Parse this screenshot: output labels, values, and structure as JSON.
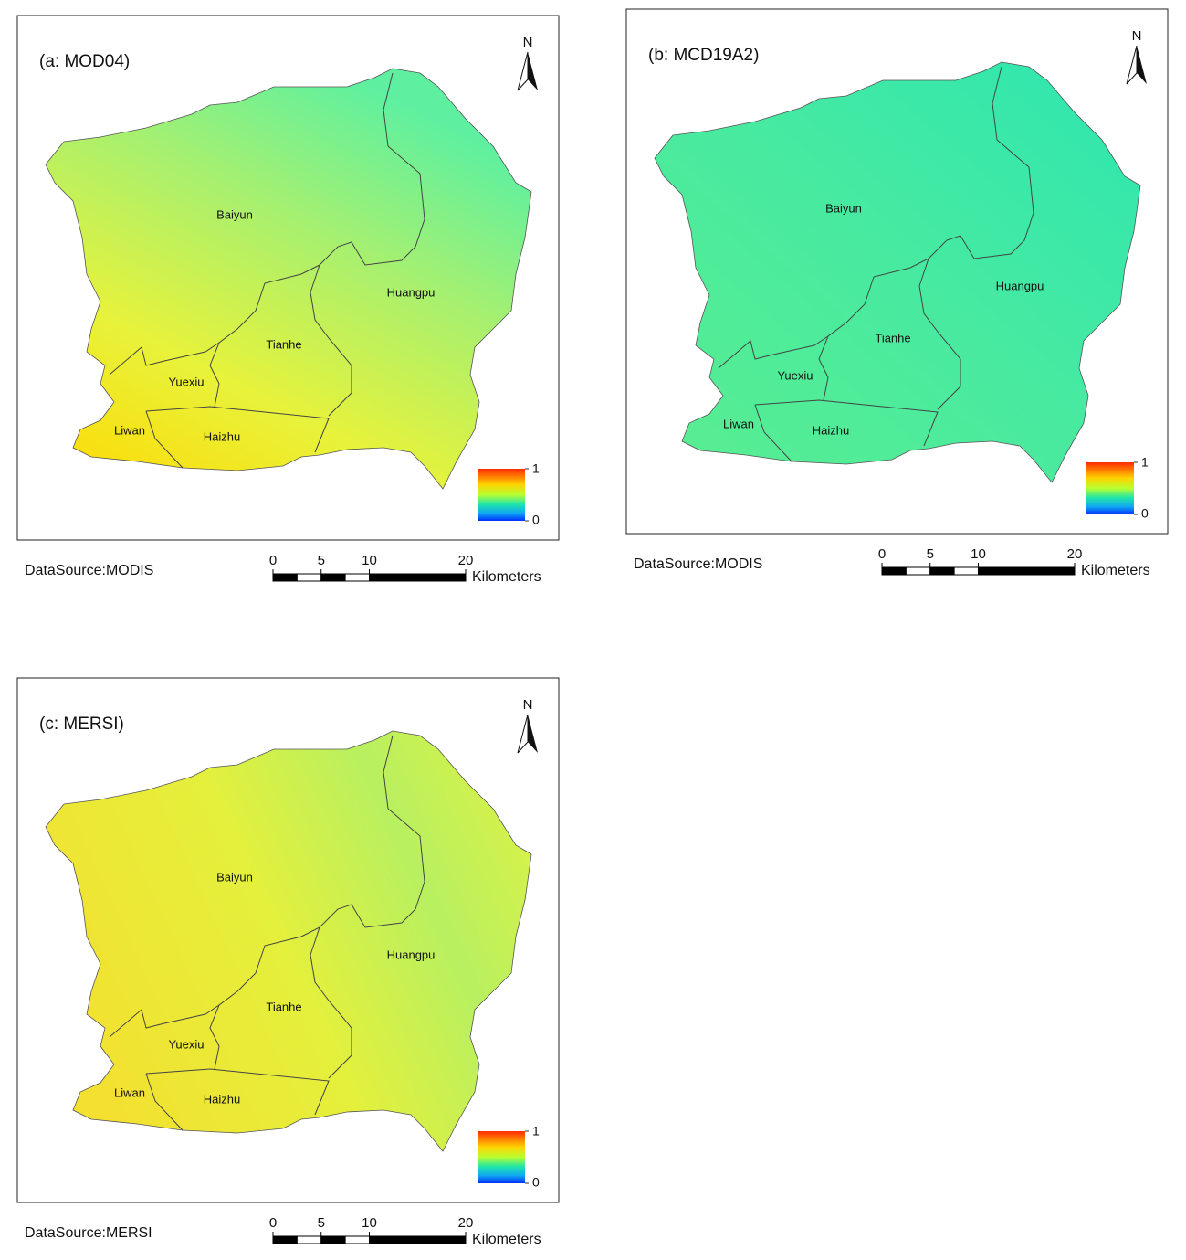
{
  "panels": [
    {
      "title": "(a: MOD04)",
      "north": "N",
      "districts": [
        "Baiyun",
        "Huangpu",
        "Tianhe",
        "Yuexiu",
        "Liwan",
        "Haizhu"
      ],
      "legend": {
        "max": 1,
        "min": 0
      },
      "source": "DataSource:MODIS",
      "scale": {
        "ticks": [
          0,
          5,
          10,
          20
        ],
        "unit": "Kilometers"
      }
    },
    {
      "title": "(b: MCD19A2)",
      "north": "N",
      "districts": [
        "Baiyun",
        "Huangpu",
        "Tianhe",
        "Yuexiu",
        "Liwan",
        "Haizhu"
      ],
      "legend": {
        "max": 1,
        "min": 0
      },
      "source": "DataSource:MODIS",
      "scale": {
        "ticks": [
          0,
          5,
          10,
          20
        ],
        "unit": "Kilometers"
      }
    },
    {
      "title": "(c: MERSI)",
      "north": "N",
      "districts": [
        "Baiyun",
        "Huangpu",
        "Tianhe",
        "Yuexiu",
        "Liwan",
        "Haizhu"
      ],
      "legend": {
        "max": 1,
        "min": 0
      },
      "source": "DataSource:MERSI",
      "scale": {
        "ticks": [
          0,
          5,
          10,
          20
        ],
        "unit": "Kilometers"
      }
    }
  ]
}
